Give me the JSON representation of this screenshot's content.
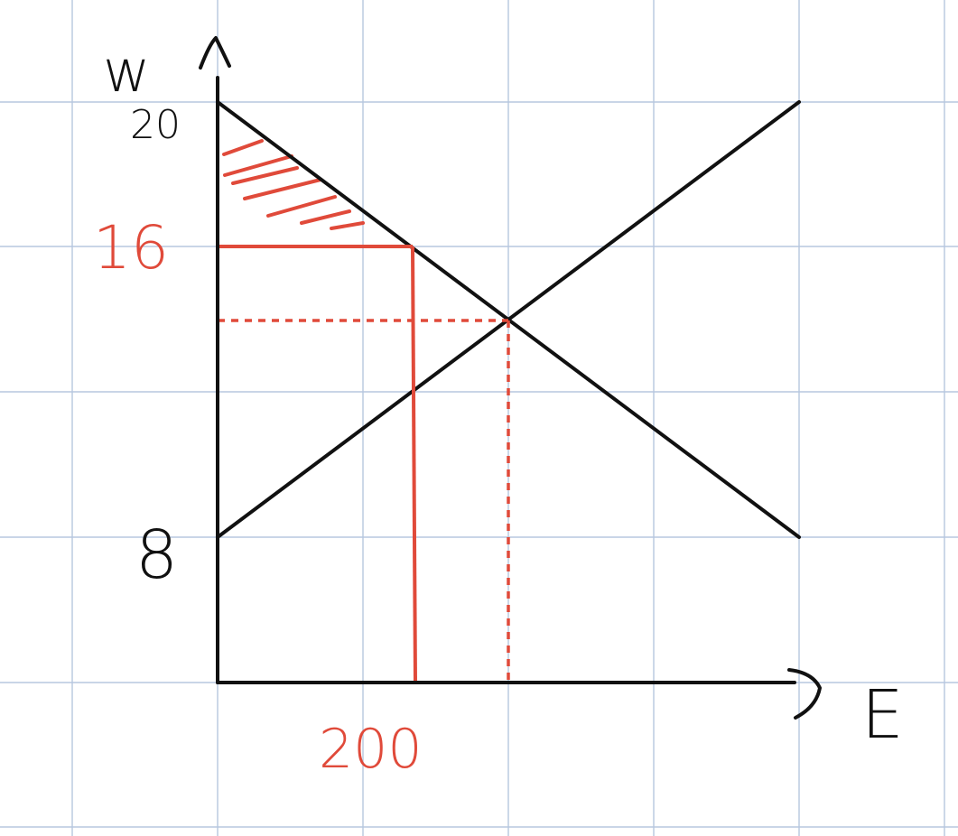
{
  "axes": {
    "y_label": "w",
    "x_label": "E",
    "y_tick_20": "20",
    "y_tick_8": "8"
  },
  "annotations": {
    "wage_level": "16",
    "employment_level": "200"
  },
  "colors": {
    "ink": "#111111",
    "red": "#e04a3a",
    "grid": "#b7c7df"
  },
  "shapes": {
    "demand_line": "black-downward-line",
    "supply_line": "black-upward-line",
    "equilibrium_guides": "red-dashed-lines",
    "price_ceiling_lines": "red-solid-lines",
    "shaded_area": "red-hatched-triangle"
  }
}
